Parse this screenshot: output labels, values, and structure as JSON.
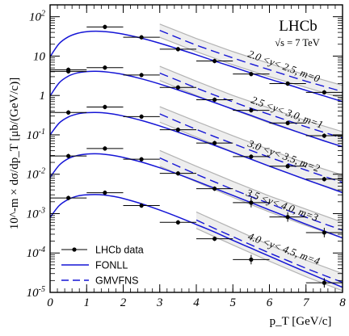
{
  "chart_data": {
    "type": "scatter",
    "experiment": "LHCb",
    "energy_label": "√s = 7 TeV",
    "xlabel": "p_T [GeV/c]",
    "ylabel": "10^-m × dσ/dp_T [μb/(GeV/c)]",
    "xlim": [
      0,
      8
    ],
    "ylim": [
      1e-05,
      200
    ],
    "yscale": "log",
    "x_ticks": [
      0,
      1,
      2,
      3,
      4,
      5,
      6,
      7,
      8
    ],
    "y_tick_labels": [
      "10^-5",
      "10^-4",
      "10^-3",
      "10^-2",
      "10^-1",
      "1",
      "10",
      "10^2"
    ],
    "legend": {
      "position": "bottom-left",
      "entries": [
        {
          "label": "LHCb data",
          "style": "marker"
        },
        {
          "label": "FONLL",
          "style": "solid",
          "color": "#1515d6"
        },
        {
          "label": "GMVFNS",
          "style": "dashed",
          "color": "#1515d6"
        }
      ]
    },
    "series": [
      {
        "name": "2.0 <y< 2.5, m=0",
        "x": [
          0.5,
          1.5,
          2.5,
          3.5,
          4.5,
          5.5,
          6.5,
          7.5
        ],
        "y": [
          4.5,
          55,
          30,
          15,
          7.5,
          3.5,
          2.0,
          1.2
        ],
        "fonll_start": 0.0,
        "fonll": [
          [
            0,
            9.6
          ],
          [
            0.25,
            20.8
          ],
          [
            0.5,
            30.9
          ],
          [
            0.75,
            37.9
          ],
          [
            1,
            41.7
          ],
          [
            1.25,
            42.8
          ],
          [
            1.5,
            41.8
          ],
          [
            1.75,
            39.4
          ],
          [
            2,
            36.1
          ],
          [
            2.5,
            28.5
          ],
          [
            3,
            21.2
          ],
          [
            3.5,
            15.2
          ],
          [
            4,
            10.8
          ],
          [
            4.5,
            7.5
          ],
          [
            5,
            5.3
          ],
          [
            5.5,
            3.7
          ],
          [
            6,
            2.6
          ],
          [
            6.5,
            1.9
          ],
          [
            7,
            1.35
          ],
          [
            7.5,
            0.97
          ],
          [
            8,
            0.7
          ]
        ],
        "gmvfns": [
          [
            3,
            45
          ],
          [
            3.5,
            29
          ],
          [
            4,
            19
          ],
          [
            4.5,
            13
          ],
          [
            5,
            9
          ],
          [
            5.5,
            6.3
          ],
          [
            6,
            4.5
          ],
          [
            6.5,
            3.2
          ],
          [
            7,
            2.3
          ],
          [
            7.5,
            1.7
          ],
          [
            8,
            1.25
          ]
        ],
        "band": [
          [
            3,
            65,
            30
          ],
          [
            4,
            28,
            13
          ],
          [
            5,
            13,
            6
          ],
          [
            6,
            6.5,
            3
          ],
          [
            7,
            3.3,
            1.6
          ],
          [
            8,
            1.8,
            0.85
          ]
        ]
      },
      {
        "name": "2.5 <y< 3.0, m=1",
        "x": [
          0.5,
          1.5,
          2.5,
          3.5,
          4.5,
          5.5,
          6.5,
          7.5
        ],
        "y": [
          4.1,
          5.1,
          3.3,
          1.6,
          0.78,
          0.42,
          0.2,
          0.095
        ],
        "fonll_start": 0.0,
        "fonll": [
          [
            0,
            0.97
          ],
          [
            0.25,
            2.1
          ],
          [
            0.5,
            3.1
          ],
          [
            0.75,
            3.75
          ],
          [
            1,
            4.05
          ],
          [
            1.25,
            4.12
          ],
          [
            1.5,
            4.0
          ],
          [
            1.75,
            3.75
          ],
          [
            2,
            3.42
          ],
          [
            2.5,
            2.65
          ],
          [
            3,
            1.95
          ],
          [
            3.5,
            1.38
          ],
          [
            4,
            0.96
          ],
          [
            4.5,
            0.66
          ],
          [
            5,
            0.45
          ],
          [
            5.5,
            0.31
          ],
          [
            6,
            0.21
          ],
          [
            6.5,
            0.145
          ],
          [
            7,
            0.1
          ],
          [
            7.5,
            0.07
          ],
          [
            8,
            0.05
          ]
        ],
        "gmvfns": [
          [
            3,
            3.7
          ],
          [
            3.5,
            2.4
          ],
          [
            4,
            1.55
          ],
          [
            4.5,
            1.02
          ],
          [
            5,
            0.69
          ],
          [
            5.5,
            0.47
          ],
          [
            6,
            0.33
          ],
          [
            6.5,
            0.23
          ],
          [
            7,
            0.16
          ],
          [
            7.5,
            0.115
          ],
          [
            8,
            0.083
          ]
        ],
        "band": [
          [
            3,
            5.5,
            2.4
          ],
          [
            4,
            2.3,
            1.0
          ],
          [
            5,
            1.0,
            0.44
          ],
          [
            6,
            0.48,
            0.2
          ],
          [
            7,
            0.23,
            0.1
          ],
          [
            8,
            0.12,
            0.05
          ]
        ]
      },
      {
        "name": "3.0 <y< 3.5, m=2",
        "x": [
          0.5,
          1.5,
          2.5,
          3.5,
          4.5,
          5.5,
          6.5,
          7.5
        ],
        "y": [
          0.37,
          0.51,
          0.29,
          0.135,
          0.062,
          0.028,
          0.016,
          0.0075
        ],
        "fonll_start": 0.0,
        "fonll": [
          [
            0,
            0.1
          ],
          [
            0.25,
            0.2
          ],
          [
            0.5,
            0.285
          ],
          [
            0.75,
            0.34
          ],
          [
            1,
            0.365
          ],
          [
            1.25,
            0.37
          ],
          [
            1.5,
            0.36
          ],
          [
            1.75,
            0.335
          ],
          [
            2,
            0.302
          ],
          [
            2.5,
            0.232
          ],
          [
            3,
            0.168
          ],
          [
            3.5,
            0.117
          ],
          [
            4,
            0.08
          ],
          [
            4.5,
            0.054
          ],
          [
            5,
            0.036
          ],
          [
            5.5,
            0.024
          ],
          [
            6,
            0.016
          ],
          [
            6.5,
            0.0108
          ],
          [
            7,
            0.0073
          ],
          [
            7.5,
            0.005
          ],
          [
            8,
            0.0034
          ]
        ],
        "gmvfns": [
          [
            3,
            0.34
          ],
          [
            3.5,
            0.215
          ],
          [
            4,
            0.138
          ],
          [
            4.5,
            0.09
          ],
          [
            5,
            0.06
          ],
          [
            5.5,
            0.04
          ],
          [
            6,
            0.027
          ],
          [
            6.5,
            0.0185
          ],
          [
            7,
            0.0127
          ],
          [
            7.5,
            0.0088
          ],
          [
            8,
            0.0062
          ]
        ],
        "band": [
          [
            3,
            0.52,
            0.21
          ],
          [
            4,
            0.22,
            0.088
          ],
          [
            5,
            0.095,
            0.037
          ],
          [
            6,
            0.042,
            0.016
          ],
          [
            7,
            0.019,
            0.0073
          ],
          [
            8,
            0.0095,
            0.0036
          ]
        ]
      },
      {
        "name": "3.5 <y< 4.0, m=3",
        "x": [
          0.5,
          1.5,
          2.5,
          3.5,
          4.5,
          5.5,
          6.5,
          7.5
        ],
        "y": [
          0.029,
          0.045,
          0.024,
          0.0105,
          0.0043,
          0.0019,
          0.00082,
          0.00033
        ],
        "fonll_start": 0.0,
        "fonll": [
          [
            0,
            0.0083
          ],
          [
            0.25,
            0.017
          ],
          [
            0.5,
            0.025
          ],
          [
            0.75,
            0.03
          ],
          [
            1,
            0.0325
          ],
          [
            1.25,
            0.033
          ],
          [
            1.5,
            0.032
          ],
          [
            1.75,
            0.0298
          ],
          [
            2,
            0.0268
          ],
          [
            2.5,
            0.0204
          ],
          [
            3,
            0.0146
          ],
          [
            3.5,
            0.01
          ],
          [
            4,
            0.0067
          ],
          [
            4.5,
            0.0044
          ],
          [
            5,
            0.0029
          ],
          [
            5.5,
            0.0019
          ],
          [
            6,
            0.00124
          ],
          [
            6.5,
            0.00082
          ],
          [
            7,
            0.00054
          ],
          [
            7.5,
            0.00036
          ],
          [
            8,
            0.00024
          ]
        ],
        "gmvfns": [
          [
            3,
            0.026
          ],
          [
            3.5,
            0.016
          ],
          [
            4,
            0.01
          ],
          [
            4.5,
            0.0064
          ],
          [
            5,
            0.0041
          ],
          [
            5.5,
            0.0027
          ],
          [
            6,
            0.0018
          ],
          [
            6.5,
            0.0012
          ],
          [
            7,
            0.00081
          ],
          [
            7.5,
            0.00055
          ],
          [
            8,
            0.00038
          ]
        ],
        "band": [
          [
            3,
            0.04,
            0.016
          ],
          [
            4,
            0.016,
            0.0064
          ],
          [
            5,
            0.0066,
            0.0026
          ],
          [
            6,
            0.0028,
            0.0011
          ],
          [
            7,
            0.0013,
            0.0005
          ],
          [
            8,
            0.0006,
            0.00024
          ]
        ]
      },
      {
        "name": "4.0 <y< 4.5, m=4",
        "x": [
          0.5,
          1.5,
          2.5,
          3.5,
          4.5,
          5.5,
          7.5
        ],
        "y": [
          0.0025,
          0.0034,
          0.0016,
          0.0006,
          0.00023,
          6.8e-05,
          1.75e-05
        ],
        "fonll_start": 0.0,
        "fonll": [
          [
            0,
            0.0008
          ],
          [
            0.25,
            0.0016
          ],
          [
            0.5,
            0.0023
          ],
          [
            0.75,
            0.0028
          ],
          [
            1,
            0.003
          ],
          [
            1.25,
            0.00305
          ],
          [
            1.5,
            0.00295
          ],
          [
            1.75,
            0.00272
          ],
          [
            2,
            0.00242
          ],
          [
            2.5,
            0.00178
          ],
          [
            3,
            0.00123
          ],
          [
            3.5,
            0.00082
          ],
          [
            4,
            0.00053
          ],
          [
            4.5,
            0.00034
          ],
          [
            5,
            0.00021
          ],
          [
            5.5,
            0.000132
          ],
          [
            6,
            8.3e-05
          ],
          [
            6.5,
            5.2e-05
          ],
          [
            7,
            3.3e-05
          ],
          [
            7.5,
            2.1e-05
          ],
          [
            8,
            1.35e-05
          ]
        ],
        "gmvfns": [
          [
            4,
            0.00069
          ],
          [
            4.5,
            0.00042
          ],
          [
            5,
            0.00026
          ],
          [
            5.5,
            0.00016
          ],
          [
            6,
            0.0001
          ],
          [
            6.5,
            6.4e-05
          ],
          [
            7,
            4.1e-05
          ],
          [
            7.5,
            2.7e-05
          ],
          [
            8,
            1.8e-05
          ]
        ],
        "band": [
          [
            4,
            0.0011,
            0.00042
          ],
          [
            5,
            0.00042,
            0.00016
          ],
          [
            6,
            0.00016,
            6.2e-05
          ],
          [
            7,
            6.6e-05,
            2.5e-05
          ],
          [
            8,
            3e-05,
            1.1e-05
          ]
        ]
      }
    ]
  }
}
